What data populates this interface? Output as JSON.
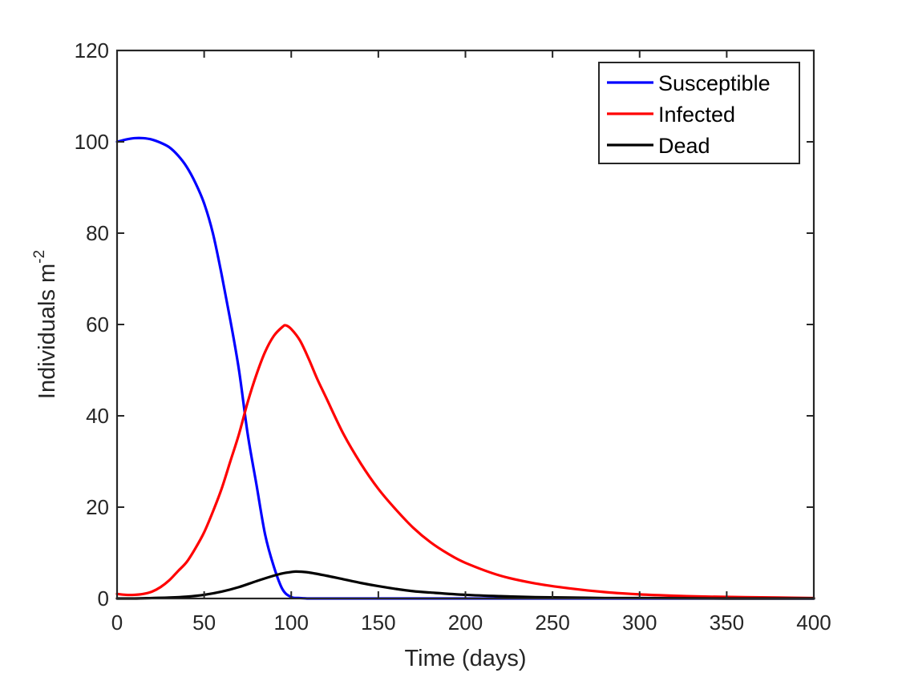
{
  "chart_data": {
    "type": "line",
    "title": "",
    "xlabel": "Time (days)",
    "ylabel": "Individuals m",
    "ylabel_superscript": "-2",
    "xlim": [
      0,
      400
    ],
    "ylim": [
      0,
      120
    ],
    "x_ticks": [
      0,
      50,
      100,
      150,
      200,
      250,
      300,
      350,
      400
    ],
    "y_ticks": [
      0,
      20,
      40,
      60,
      80,
      100,
      120
    ],
    "grid": false,
    "legend_position": "top-right",
    "series": [
      {
        "name": "Susceptible",
        "color": "#0000ff",
        "x": [
          0,
          5,
          10,
          15,
          20,
          25,
          30,
          35,
          40,
          45,
          50,
          55,
          60,
          65,
          70,
          75,
          80,
          85,
          90,
          95,
          100,
          105,
          110,
          115,
          120,
          130,
          140,
          150,
          200,
          250,
          300,
          350,
          400
        ],
        "y": [
          100,
          100.5,
          100.8,
          100.8,
          100.5,
          99.8,
          98.8,
          97.0,
          94.5,
          91.0,
          86.5,
          80.0,
          71.0,
          61.0,
          50.0,
          36.0,
          25.0,
          14.0,
          7.0,
          2.0,
          0.3,
          0.1,
          0,
          0,
          0,
          0,
          0,
          0,
          0,
          0,
          0,
          0,
          0
        ]
      },
      {
        "name": "Infected",
        "color": "#ff0000",
        "x": [
          0,
          5,
          10,
          15,
          20,
          25,
          30,
          35,
          40,
          45,
          50,
          55,
          60,
          65,
          70,
          75,
          80,
          85,
          90,
          95,
          97,
          100,
          105,
          110,
          115,
          120,
          130,
          140,
          150,
          160,
          170,
          180,
          190,
          200,
          220,
          240,
          260,
          280,
          300,
          320,
          340,
          360,
          380,
          400
        ],
        "y": [
          1.0,
          0.8,
          0.8,
          1.0,
          1.5,
          2.5,
          4.0,
          6.0,
          8.0,
          11.0,
          14.5,
          19.0,
          24.0,
          30.0,
          36.0,
          43.0,
          49.0,
          54.0,
          57.5,
          59.5,
          59.8,
          59.0,
          56.5,
          52.5,
          48.0,
          44.0,
          36.0,
          29.5,
          24.0,
          19.5,
          15.5,
          12.3,
          9.8,
          7.8,
          5.0,
          3.3,
          2.2,
          1.4,
          0.9,
          0.6,
          0.4,
          0.3,
          0.2,
          0.1
        ]
      },
      {
        "name": "Dead",
        "color": "#000000",
        "x": [
          0,
          10,
          20,
          30,
          40,
          50,
          60,
          70,
          80,
          90,
          95,
          100,
          103,
          110,
          120,
          130,
          140,
          150,
          160,
          170,
          180,
          200,
          220,
          240,
          260,
          280,
          300,
          350,
          400
        ],
        "y": [
          0,
          0,
          0.1,
          0.2,
          0.4,
          0.8,
          1.5,
          2.5,
          3.8,
          5.0,
          5.5,
          5.8,
          5.9,
          5.7,
          5.0,
          4.2,
          3.4,
          2.7,
          2.1,
          1.6,
          1.3,
          0.8,
          0.5,
          0.3,
          0.2,
          0.1,
          0.1,
          0,
          0
        ]
      }
    ]
  }
}
